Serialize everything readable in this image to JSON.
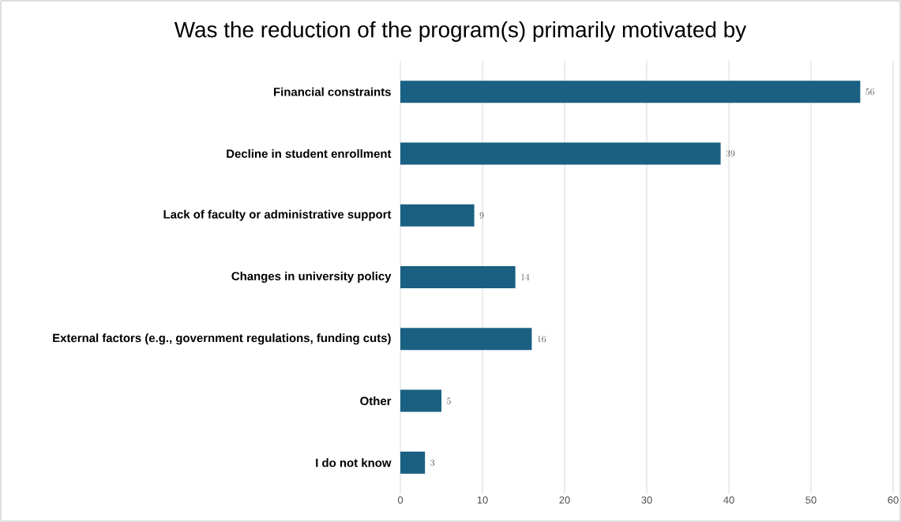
{
  "chart_data": {
    "type": "bar",
    "orientation": "horizontal",
    "title": "Was the reduction of the program(s) primarily motivated by",
    "categories": [
      "Financial constraints",
      "Decline in student enrollment",
      "Lack of faculty or administrative support",
      "Changes in university policy",
      "External factors (e.g., government regulations, funding cuts)",
      "Other",
      "I do not know"
    ],
    "values": [
      56,
      39,
      9,
      14,
      16,
      5,
      3
    ],
    "color": "#1a6082",
    "xlim": [
      0,
      60
    ],
    "xticks": [
      0,
      10,
      20,
      30,
      40,
      50,
      60
    ],
    "grid": "x",
    "data_labels": true
  }
}
